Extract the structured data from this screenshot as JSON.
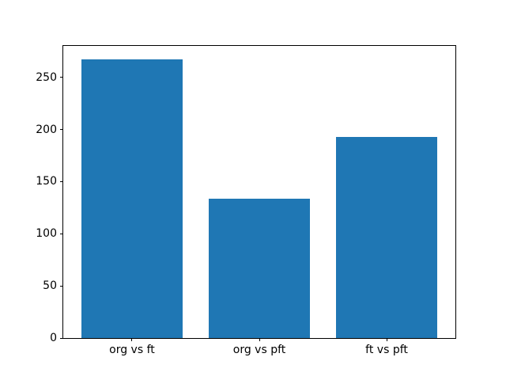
{
  "chart_data": {
    "type": "bar",
    "title": "",
    "xlabel": "",
    "ylabel": "",
    "categories": [
      "org vs ft",
      "org vs pft",
      "ft vs pft"
    ],
    "values": [
      267,
      134,
      193
    ],
    "bar_color": "#1f77b4",
    "yticks": [
      0,
      50,
      100,
      150,
      200,
      250
    ],
    "ylim": [
      0,
      280.35
    ],
    "xlim": [
      -0.54,
      2.54
    ],
    "bar_width": 0.8,
    "grid": false,
    "legend_position": "none",
    "background_color": "#ffffff",
    "spine_color": "#000000",
    "tick_label_color": "#000000"
  }
}
